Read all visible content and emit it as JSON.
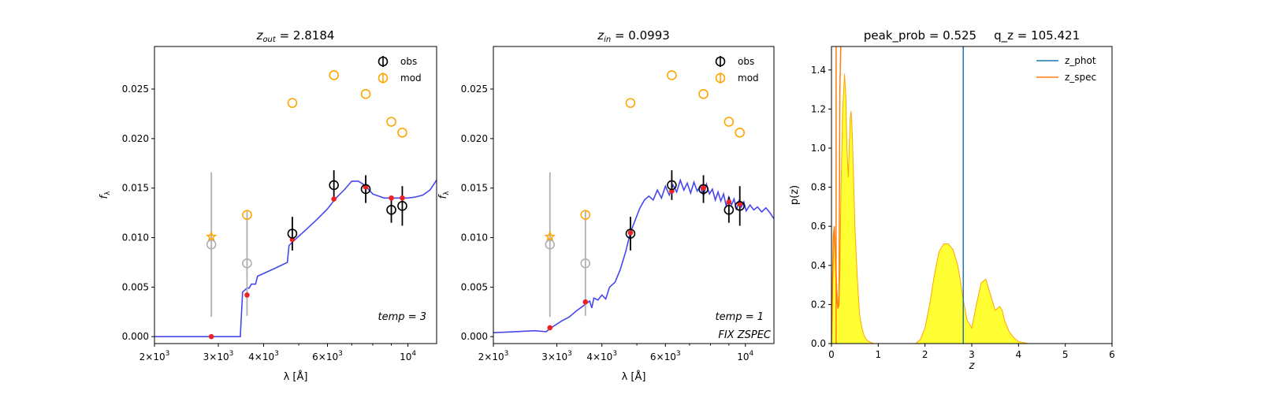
{
  "chart_data": [
    {
      "type": "scatter",
      "title": "z_out = 2.8184",
      "title_prefix": "z",
      "title_sub": "out",
      "title_value": " = 2.8184",
      "xlabel": "λ [Å]",
      "ylabel": "f_λ",
      "x_scale": "log",
      "xlim": [
        2000,
        12000
      ],
      "ylim": [
        -0.0007,
        0.0293
      ],
      "xticks": [
        {
          "value": 2000,
          "base": "2×10",
          "exp": "3"
        },
        {
          "value": 3000,
          "base": "3×10",
          "exp": "3"
        },
        {
          "value": 4000,
          "base": "4×10",
          "exp": "3"
        },
        {
          "value": 6000,
          "base": "6×10",
          "exp": "3"
        },
        {
          "value": 10000,
          "base": "10",
          "exp": "4"
        }
      ],
      "yticks": [
        {
          "value": 0.0,
          "label": "0.000"
        },
        {
          "value": 0.005,
          "label": "0.005"
        },
        {
          "value": 0.01,
          "label": "0.010"
        },
        {
          "value": 0.015,
          "label": "0.015"
        },
        {
          "value": 0.02,
          "label": "0.020"
        },
        {
          "value": 0.025,
          "label": "0.025"
        }
      ],
      "legend": {
        "placement": "top-right",
        "entries": [
          "obs",
          "mod"
        ]
      },
      "annotations": [
        "temp = 3"
      ],
      "series": [
        {
          "name": "obs",
          "role": "obs",
          "color": "#000000",
          "x": [
            4800,
            6250,
            7650,
            9000,
            9650
          ],
          "y": [
            0.0104,
            0.0153,
            0.0149,
            0.0128,
            0.0132
          ],
          "err": [
            0.0017,
            0.0015,
            0.0014,
            0.0013,
            0.002
          ]
        },
        {
          "role": "obs_excluded",
          "color": "#b0b0b0",
          "x": [
            2870,
            3600
          ],
          "y": [
            0.0093,
            0.0074
          ],
          "err": [
            0.0073,
            0.0053
          ]
        },
        {
          "name": "mod",
          "role": "mod",
          "color": "#ffa500",
          "x": [
            3600,
            4800,
            6250,
            7650,
            9000,
            9650
          ],
          "y": [
            0.0123,
            0.0236,
            0.0264,
            0.0245,
            0.0217,
            0.0206
          ]
        },
        {
          "role": "mod_star",
          "color": "#ffa500",
          "x": [
            2870
          ],
          "y": [
            0.0101
          ]
        },
        {
          "role": "template_points",
          "color": "#ee2222",
          "x": [
            2870,
            3600,
            4800,
            6250,
            7650,
            9000,
            9650
          ],
          "y": [
            0.0,
            0.0042,
            0.0098,
            0.0139,
            0.0151,
            0.014,
            0.014
          ]
        },
        {
          "role": "template_line",
          "color": "#3333ee",
          "x": [
            2000,
            3450,
            3500,
            3600,
            3650,
            3700,
            3800,
            3850,
            4300,
            4650,
            4700,
            4850,
            5200,
            5600,
            6000,
            6300,
            6700,
            7000,
            7300,
            7600,
            8000,
            8600,
            9300,
            10000,
            10500,
            11000,
            11500,
            12000
          ],
          "y": [
            0.0,
            0.0,
            0.0045,
            0.0049,
            0.0049,
            0.0053,
            0.0053,
            0.0061,
            0.0069,
            0.0075,
            0.0092,
            0.0097,
            0.0107,
            0.0118,
            0.0129,
            0.0139,
            0.0149,
            0.0157,
            0.0157,
            0.0153,
            0.0144,
            0.014,
            0.014,
            0.014,
            0.0141,
            0.0143,
            0.0148,
            0.0158
          ]
        }
      ]
    },
    {
      "type": "scatter",
      "title": "z_in = 0.0993",
      "title_prefix": "z",
      "title_sub": "in",
      "title_value": " = 0.0993",
      "xlabel": "λ [Å]",
      "ylabel": "f_λ",
      "x_scale": "log",
      "xlim": [
        2000,
        12000
      ],
      "ylim": [
        -0.0007,
        0.0293
      ],
      "xticks": [
        {
          "value": 2000,
          "base": "2×10",
          "exp": "3"
        },
        {
          "value": 3000,
          "base": "3×10",
          "exp": "3"
        },
        {
          "value": 4000,
          "base": "4×10",
          "exp": "3"
        },
        {
          "value": 6000,
          "base": "6×10",
          "exp": "3"
        },
        {
          "value": 10000,
          "base": "10",
          "exp": "4"
        }
      ],
      "yticks": [
        {
          "value": 0.0,
          "label": "0.000"
        },
        {
          "value": 0.005,
          "label": "0.005"
        },
        {
          "value": 0.01,
          "label": "0.010"
        },
        {
          "value": 0.015,
          "label": "0.015"
        },
        {
          "value": 0.02,
          "label": "0.020"
        },
        {
          "value": 0.025,
          "label": "0.025"
        }
      ],
      "legend": {
        "placement": "top-right",
        "entries": [
          "obs",
          "mod"
        ]
      },
      "annotations": [
        "temp = 1",
        "FIX ZSPEC"
      ],
      "series": [
        {
          "name": "obs",
          "role": "obs",
          "color": "#000000",
          "x": [
            4800,
            6250,
            7650,
            9000,
            9650
          ],
          "y": [
            0.0104,
            0.0153,
            0.0149,
            0.0128,
            0.0132
          ],
          "err": [
            0.0017,
            0.0015,
            0.0014,
            0.0013,
            0.002
          ]
        },
        {
          "role": "obs_excluded",
          "color": "#b0b0b0",
          "x": [
            2870,
            3600
          ],
          "y": [
            0.0093,
            0.0074
          ],
          "err": [
            0.0073,
            0.0053
          ]
        },
        {
          "name": "mod",
          "role": "mod",
          "color": "#ffa500",
          "x": [
            3600,
            4800,
            6250,
            7650,
            9000,
            9650
          ],
          "y": [
            0.0123,
            0.0236,
            0.0264,
            0.0245,
            0.0217,
            0.0206
          ]
        },
        {
          "role": "mod_star",
          "color": "#ffa500",
          "x": [
            2870
          ],
          "y": [
            0.0101
          ]
        },
        {
          "role": "template_points",
          "color": "#ee2222",
          "x": [
            2870,
            3600,
            4800,
            6250,
            7650,
            9000,
            9650
          ],
          "y": [
            0.0009,
            0.0035,
            0.0105,
            0.0147,
            0.015,
            0.0136,
            0.0134
          ]
        },
        {
          "role": "template_line",
          "color": "#3333ee",
          "x": [
            2000,
            2300,
            2600,
            2800,
            2950,
            3100,
            3250,
            3400,
            3550,
            3700,
            3750,
            3800,
            3900,
            4000,
            4100,
            4200,
            4350,
            4500,
            4650,
            4800,
            4950,
            5100,
            5250,
            5400,
            5550,
            5700,
            5850,
            6000,
            6150,
            6300,
            6450,
            6600,
            6750,
            6900,
            7050,
            7200,
            7350,
            7500,
            7650,
            7800,
            7950,
            8100,
            8250,
            8400,
            8550,
            8700,
            8850,
            9000,
            9150,
            9300,
            9450,
            9600,
            9750,
            9900,
            10050,
            10300,
            10550,
            10800,
            11100,
            11400,
            11700,
            12000
          ],
          "y": [
            0.0004,
            0.0005,
            0.0006,
            0.0005,
            0.0011,
            0.0016,
            0.002,
            0.0026,
            0.0031,
            0.0036,
            0.0029,
            0.0039,
            0.0037,
            0.0042,
            0.0038,
            0.005,
            0.0055,
            0.0068,
            0.0085,
            0.0105,
            0.0118,
            0.013,
            0.0138,
            0.0142,
            0.0138,
            0.0148,
            0.014,
            0.0152,
            0.0143,
            0.0153,
            0.0146,
            0.0158,
            0.0148,
            0.0155,
            0.0145,
            0.0156,
            0.0147,
            0.0152,
            0.0142,
            0.0154,
            0.0144,
            0.0149,
            0.0138,
            0.0146,
            0.0137,
            0.0144,
            0.0132,
            0.0141,
            0.0133,
            0.0139,
            0.0128,
            0.0137,
            0.0131,
            0.0136,
            0.0127,
            0.0133,
            0.0128,
            0.0131,
            0.0126,
            0.013,
            0.0125,
            0.0119
          ]
        }
      ]
    },
    {
      "type": "area",
      "title": "peak_prob = 0.525    q_z = 105.421",
      "title_peak": "peak_prob = 0.525",
      "title_qz": "q_z = 105.421",
      "xlabel": "z",
      "ylabel": "p(z)",
      "xlim": [
        0,
        6
      ],
      "ylim": [
        0,
        1.52
      ],
      "xticks": [
        0,
        1,
        2,
        3,
        4,
        5,
        6
      ],
      "yticks": [
        0.0,
        0.2,
        0.4,
        0.6,
        0.8,
        1.0,
        1.2,
        1.4
      ],
      "legend": {
        "placement": "top-right",
        "entries": [
          "z_phot",
          "z_spec"
        ]
      },
      "vlines": [
        {
          "name": "z_phot",
          "x": 2.8184,
          "color": "#1f77b4"
        },
        {
          "name": "z_spec",
          "x": 0.0993,
          "color": "#ff7f0e"
        }
      ],
      "pz_fill_color": "#ffff33",
      "pz_edge_color": "#ffa500",
      "pz": {
        "x": [
          0.0,
          0.03,
          0.06,
          0.08,
          0.1,
          0.12,
          0.15,
          0.18,
          0.2,
          0.24,
          0.28,
          0.31,
          0.33,
          0.36,
          0.38,
          0.4,
          0.42,
          0.44,
          0.46,
          0.5,
          0.55,
          0.6,
          0.65,
          0.7,
          0.75,
          0.8,
          0.9,
          1.0,
          1.5,
          1.8,
          1.9,
          2.0,
          2.1,
          2.2,
          2.3,
          2.4,
          2.5,
          2.6,
          2.7,
          2.75,
          2.8,
          2.9,
          3.0,
          3.1,
          3.2,
          3.3,
          3.4,
          3.5,
          3.55,
          3.6,
          3.65,
          3.7,
          3.8,
          3.9,
          4.0,
          4.2,
          5.0
        ],
        "y": [
          0.0,
          0.35,
          0.6,
          0.5,
          0.38,
          0.27,
          0.18,
          0.35,
          0.75,
          1.2,
          1.38,
          1.25,
          1.0,
          0.85,
          1.0,
          1.15,
          1.19,
          1.1,
          0.95,
          0.6,
          0.35,
          0.15,
          0.08,
          0.04,
          0.02,
          0.01,
          0.0,
          0.0,
          0.0,
          0.0,
          0.02,
          0.08,
          0.2,
          0.35,
          0.47,
          0.51,
          0.51,
          0.48,
          0.4,
          0.33,
          0.25,
          0.12,
          0.08,
          0.2,
          0.31,
          0.33,
          0.25,
          0.17,
          0.18,
          0.19,
          0.17,
          0.12,
          0.06,
          0.03,
          0.01,
          0.0,
          0.0
        ]
      },
      "zspec_curve": {
        "x": [
          0.0,
          0.04,
          0.06,
          0.08,
          0.1,
          0.12,
          0.14,
          0.16,
          0.18,
          0.2
        ],
        "y": [
          0.0,
          0.55,
          0.6,
          0.48,
          0.3,
          0.22,
          0.18,
          0.2,
          1.3,
          1.55
        ]
      }
    }
  ]
}
